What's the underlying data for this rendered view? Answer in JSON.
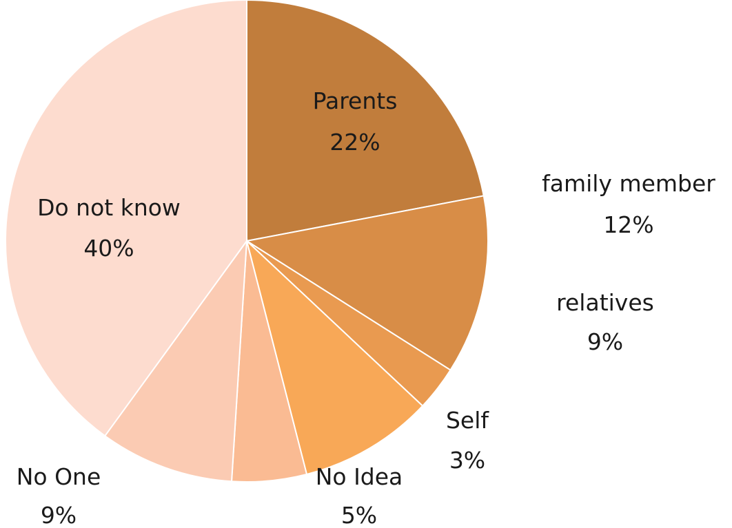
{
  "chart_data": {
    "type": "pie",
    "title": "",
    "start_angle_deg": 0,
    "direction": "clockwise",
    "legend": "none",
    "slices": [
      {
        "label": "Parents",
        "value": 22,
        "value_label": "22%",
        "color": "#C17D3C"
      },
      {
        "label": "family member",
        "value": 12,
        "value_label": "12%",
        "color": "#D88D47"
      },
      {
        "label": "Self",
        "value": 3,
        "value_label": "3%",
        "color": "#E99A50"
      },
      {
        "label": "relatives",
        "value": 9,
        "value_label": "9%",
        "color": "#F8A857"
      },
      {
        "label": "No Idea",
        "value": 5,
        "value_label": "5%",
        "color": "#FABB93"
      },
      {
        "label": "No One",
        "value": 9,
        "value_label": "9%",
        "color": "#FBCBB3"
      },
      {
        "label": "Do not know",
        "value": 40,
        "value_label": "40%",
        "color": "#FDDCCF"
      }
    ]
  }
}
